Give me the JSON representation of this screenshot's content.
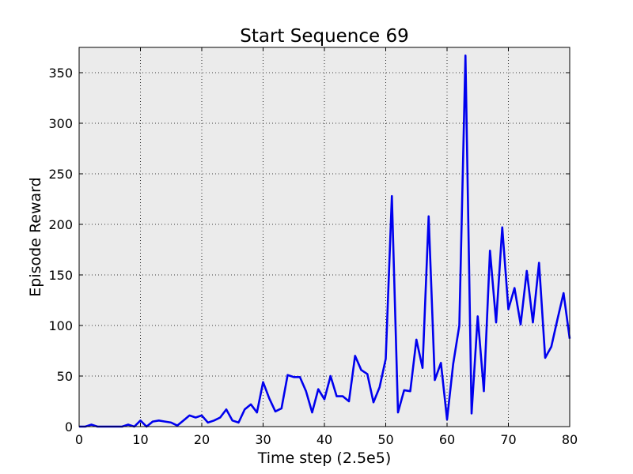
{
  "chart_data": {
    "type": "line",
    "title": "Start Sequence 69",
    "xlabel": "Time step (2.5e5)",
    "ylabel": "Episode Reward",
    "xlim": [
      0,
      80
    ],
    "ylim": [
      0,
      375
    ],
    "xticks": [
      0,
      10,
      20,
      30,
      40,
      50,
      60,
      70,
      80
    ],
    "yticks": [
      0,
      50,
      100,
      150,
      200,
      250,
      300,
      350
    ],
    "grid": true,
    "background_color": "#ebebeb",
    "line_color": "#0000ee",
    "series": [
      {
        "x": [
          0,
          1,
          2,
          3,
          4,
          5,
          6,
          7,
          8,
          9,
          10,
          11,
          12,
          13,
          14,
          15,
          16,
          17,
          18,
          19,
          20,
          21,
          22,
          23,
          24,
          25,
          26,
          27,
          28,
          29,
          30,
          31,
          32,
          33,
          34,
          35,
          36,
          37,
          38,
          39,
          40,
          41,
          42,
          43,
          44,
          45,
          46,
          47,
          48,
          49,
          50,
          51,
          52,
          53,
          54,
          55,
          56,
          57,
          58,
          59,
          60,
          61,
          62,
          63,
          64,
          65,
          66,
          67,
          68,
          69,
          70,
          71,
          72,
          73,
          74,
          75,
          76,
          77,
          78,
          79,
          80
        ],
        "y": [
          0,
          0,
          2,
          0,
          0,
          0,
          0,
          0,
          2,
          0,
          6,
          0,
          5,
          6,
          5,
          4,
          1,
          6,
          11,
          9,
          11,
          4,
          6,
          9,
          17,
          6,
          4,
          17,
          22,
          14,
          44,
          28,
          15,
          18,
          51,
          49,
          49,
          35,
          14,
          37,
          27,
          50,
          30,
          30,
          25,
          70,
          56,
          52,
          24,
          39,
          67,
          228,
          14,
          36,
          35,
          86,
          58,
          208,
          46,
          63,
          7,
          62,
          100,
          367,
          13,
          109,
          35,
          174,
          103,
          197,
          116,
          137,
          101,
          154,
          103,
          162,
          68,
          79,
          106,
          132,
          87
        ]
      }
    ]
  }
}
